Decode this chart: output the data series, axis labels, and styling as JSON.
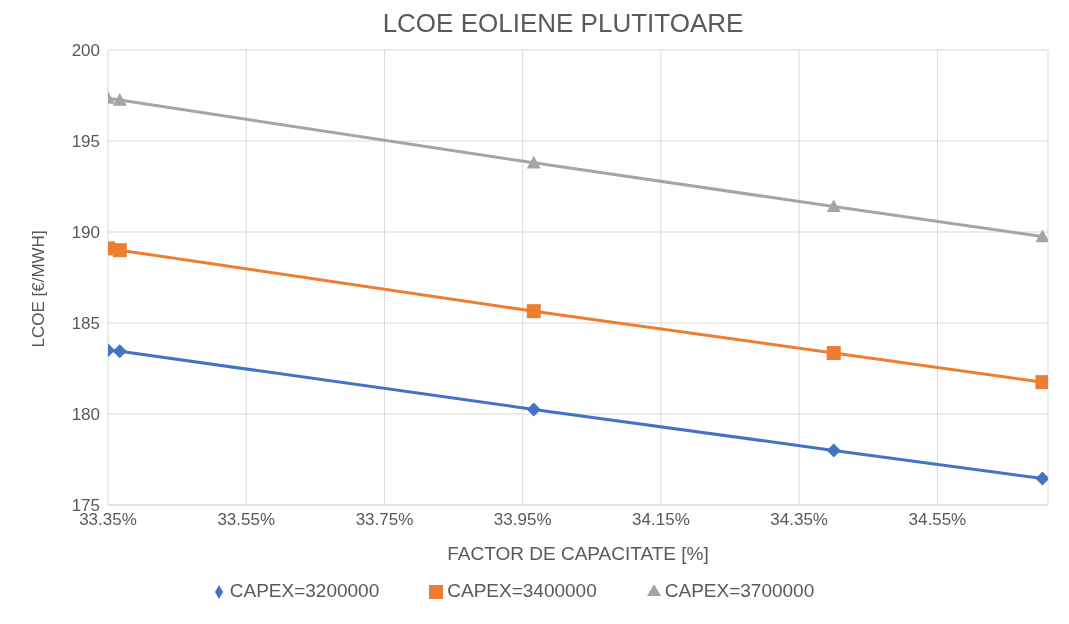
{
  "chart_data": {
    "type": "line",
    "title": "LCOE EOLIENE PLUTITOARE",
    "xlabel": "FACTOR DE CAPACITATE [%]",
    "ylabel": "LCOE [€/MWH]",
    "x": [
      33.35,
      33.367,
      33.966,
      34.4,
      34.702
    ],
    "series": [
      {
        "name": "CAPEX=3200000",
        "color": "#4472c4",
        "marker": "diamond",
        "values": [
          183.5,
          183.45,
          180.25,
          178.0,
          176.45
        ]
      },
      {
        "name": "CAPEX=3400000",
        "color": "#ed7d31",
        "marker": "square",
        "values": [
          189.1,
          189.0,
          185.65,
          183.35,
          181.75
        ]
      },
      {
        "name": "CAPEX=3700000",
        "color": "#a5a5a5",
        "marker": "triangle",
        "values": [
          197.35,
          197.25,
          193.8,
          191.4,
          189.75
        ]
      }
    ],
    "xlim": [
      33.35,
      34.71
    ],
    "xticks": [
      {
        "value": 33.35,
        "label": "33.35%"
      },
      {
        "value": 33.55,
        "label": "33.55%"
      },
      {
        "value": 33.75,
        "label": "33.75%"
      },
      {
        "value": 33.95,
        "label": "33.95%"
      },
      {
        "value": 34.15,
        "label": "34.15%"
      },
      {
        "value": 34.35,
        "label": "34.35%"
      },
      {
        "value": 34.55,
        "label": "34.55%"
      }
    ],
    "ylim": [
      175,
      200
    ],
    "yticks": [
      175,
      180,
      185,
      190,
      195,
      200
    ],
    "grid": true,
    "legend": "bottom",
    "line_style": "solid"
  }
}
